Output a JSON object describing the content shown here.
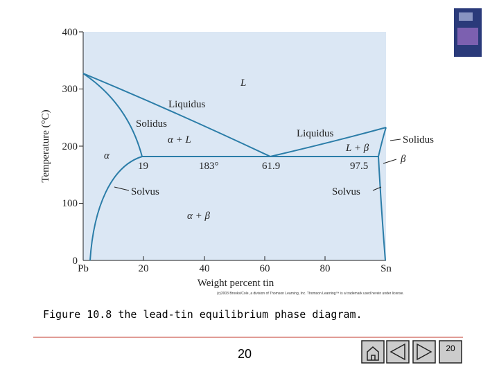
{
  "figure": {
    "y_axis_title": "Temperature (°C)",
    "x_axis_title": "Weight percent tin",
    "y_ticks": [
      "0",
      "100",
      "200",
      "300",
      "400"
    ],
    "x_ticks": [
      "Pb",
      "20",
      "40",
      "60",
      "80",
      "Sn"
    ],
    "labels": {
      "L": "L",
      "liquidus_left": "Liquidus",
      "solidus_left": "Solidus",
      "alpha_L": "α + L",
      "liquidus_right": "Liquidus",
      "L_beta": "L + β",
      "solidus_right": "Solidus",
      "alpha": "α",
      "beta": "β",
      "comp_19": "19",
      "temp_183": "183°",
      "comp_61_9": "61.9",
      "comp_97_5": "97.5",
      "solvus_left": "Solvus",
      "solvus_right": "Solvus",
      "alpha_beta": "α + β"
    },
    "copyright": "(c)2003 Brooks/Cole, a division of Thomson Learning, Inc. Thomson Learning™ is a trademark used herein under license."
  },
  "caption": "Figure 10.8 the lead-tin equilibrium phase diagram.",
  "footer": {
    "page_number": "20",
    "nav_page": "20"
  }
}
